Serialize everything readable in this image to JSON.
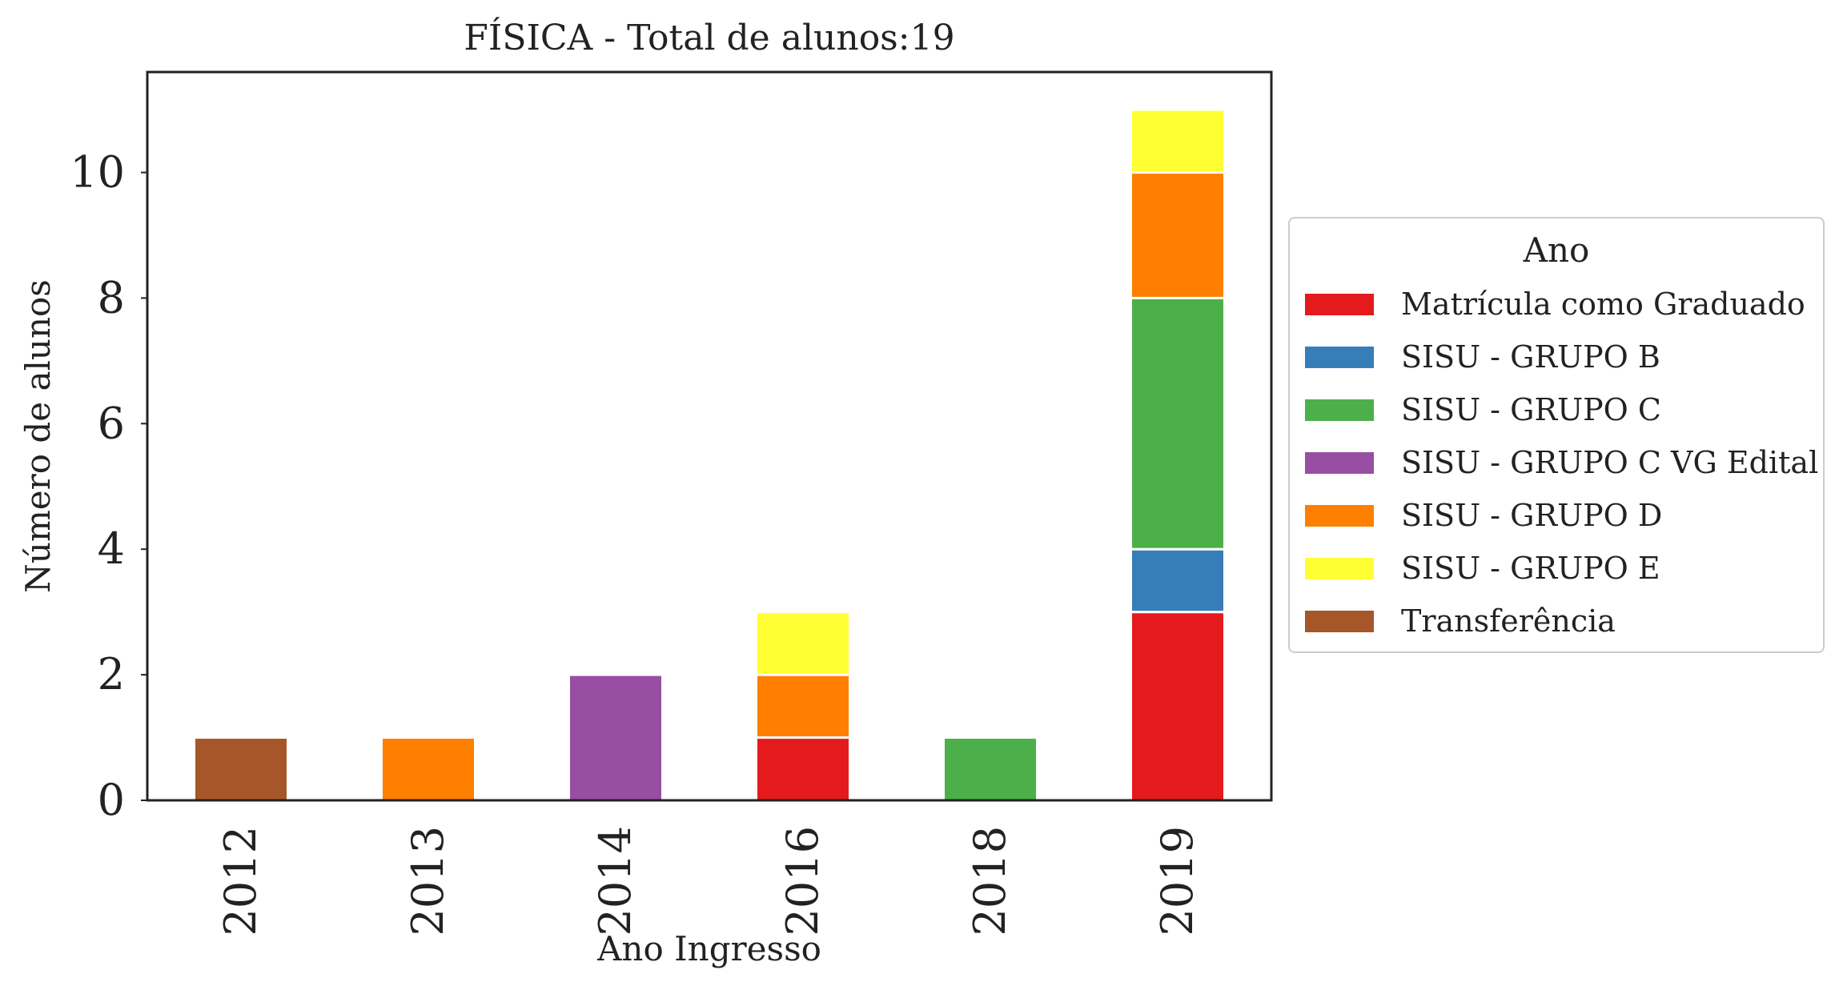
{
  "chart_data": {
    "type": "bar",
    "stacked": true,
    "title": "FÍSICA - Total de alunos:19",
    "xlabel": "Ano Ingresso",
    "ylabel": "Número de alunos",
    "categories": [
      "2012",
      "2013",
      "2014",
      "2016",
      "2018",
      "2019"
    ],
    "ylim": [
      0,
      11.6
    ],
    "yticks": [
      0,
      2,
      4,
      6,
      8,
      10
    ],
    "grid": false,
    "legend": {
      "title": "Ano",
      "placement": "right"
    },
    "series": [
      {
        "name": "Matrícula como Graduado",
        "color": "#e41a1c",
        "values": [
          0,
          0,
          0,
          1,
          0,
          3
        ]
      },
      {
        "name": "SISU - GRUPO B",
        "color": "#377eb8",
        "values": [
          0,
          0,
          0,
          0,
          0,
          1
        ]
      },
      {
        "name": "SISU - GRUPO C",
        "color": "#4daf4a",
        "values": [
          0,
          0,
          0,
          0,
          1,
          4
        ]
      },
      {
        "name": "SISU - GRUPO C VG Edital",
        "color": "#984ea3",
        "values": [
          0,
          0,
          2,
          0,
          0,
          0
        ]
      },
      {
        "name": "SISU - GRUPO D",
        "color": "#ff7f00",
        "values": [
          0,
          1,
          0,
          1,
          0,
          2
        ]
      },
      {
        "name": "SISU - GRUPO E",
        "color": "#ffff33",
        "values": [
          0,
          0,
          0,
          1,
          0,
          1
        ]
      },
      {
        "name": "Transferência",
        "color": "#a65628",
        "values": [
          1,
          0,
          0,
          0,
          0,
          0
        ]
      }
    ]
  }
}
